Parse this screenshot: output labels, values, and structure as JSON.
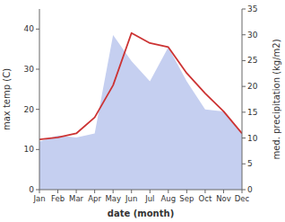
{
  "chart_data": {
    "type": "line",
    "categories": [
      "Jan",
      "Feb",
      "Mar",
      "Apr",
      "May",
      "Jun",
      "Jul",
      "Aug",
      "Sep",
      "Oct",
      "Nov",
      "Dec"
    ],
    "series": [
      {
        "type": "area",
        "color": "#c5cff0",
        "values": [
          12.0,
          13.5,
          13.0,
          14.0,
          38.5,
          32.0,
          27.0,
          35.5,
          27.0,
          20.0,
          19.5,
          14.0
        ]
      },
      {
        "type": "line",
        "color": "#cc3333",
        "values": [
          12.5,
          13.0,
          14.0,
          18.0,
          26.0,
          39.0,
          36.5,
          35.5,
          29.0,
          24.0,
          19.5,
          14.0
        ]
      }
    ],
    "ylim": [
      0,
      45
    ],
    "yticks": [
      0,
      10,
      20,
      30,
      40
    ],
    "y2lim": [
      0,
      35
    ],
    "y2ticks": [
      0,
      5,
      10,
      15,
      20,
      25,
      30,
      35
    ],
    "xlabel": "date (month)",
    "ylabel": "max temp (C)",
    "y2label": "med. precipitation (kg/m2)",
    "grid": false
  }
}
